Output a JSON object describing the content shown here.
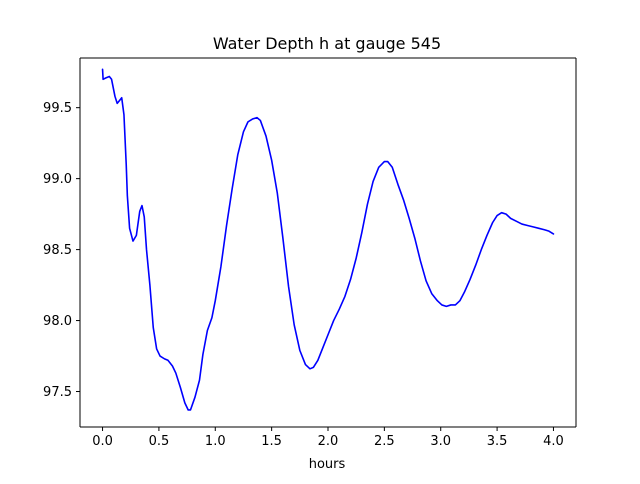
{
  "chart_data": {
    "type": "line",
    "title": "Water Depth h at gauge 545",
    "xlabel": "hours",
    "ylabel": "",
    "xlim": [
      -0.2,
      4.2
    ],
    "ylim": [
      97.25,
      99.85
    ],
    "x_ticks": [
      0.0,
      0.5,
      1.0,
      1.5,
      2.0,
      2.5,
      3.0,
      3.5,
      4.0
    ],
    "x_tick_labels": [
      "0.0",
      "0.5",
      "1.0",
      "1.5",
      "2.0",
      "2.5",
      "3.0",
      "3.5",
      "4.0"
    ],
    "y_ticks": [
      97.5,
      98.0,
      98.5,
      99.0,
      99.5
    ],
    "y_tick_labels": [
      "97.5",
      "98.0",
      "98.5",
      "99.0",
      "99.5"
    ],
    "grid": false,
    "legend": "none",
    "series": [
      {
        "color": "#0000ff",
        "points": [
          [
            0.0,
            99.77
          ],
          [
            0.005,
            99.7
          ],
          [
            0.03,
            99.71
          ],
          [
            0.06,
            99.72
          ],
          [
            0.08,
            99.7
          ],
          [
            0.11,
            99.58
          ],
          [
            0.13,
            99.53
          ],
          [
            0.15,
            99.55
          ],
          [
            0.17,
            99.57
          ],
          [
            0.19,
            99.45
          ],
          [
            0.21,
            99.1
          ],
          [
            0.22,
            98.88
          ],
          [
            0.24,
            98.65
          ],
          [
            0.27,
            98.56
          ],
          [
            0.3,
            98.6
          ],
          [
            0.33,
            98.77
          ],
          [
            0.35,
            98.81
          ],
          [
            0.37,
            98.73
          ],
          [
            0.39,
            98.5
          ],
          [
            0.42,
            98.25
          ],
          [
            0.45,
            97.95
          ],
          [
            0.48,
            97.8
          ],
          [
            0.51,
            97.75
          ],
          [
            0.55,
            97.73
          ],
          [
            0.58,
            97.72
          ],
          [
            0.62,
            97.68
          ],
          [
            0.65,
            97.63
          ],
          [
            0.69,
            97.53
          ],
          [
            0.73,
            97.42
          ],
          [
            0.76,
            97.37
          ],
          [
            0.78,
            97.37
          ],
          [
            0.82,
            97.46
          ],
          [
            0.86,
            97.58
          ],
          [
            0.89,
            97.76
          ],
          [
            0.93,
            97.93
          ],
          [
            0.97,
            98.02
          ],
          [
            1.0,
            98.14
          ],
          [
            1.05,
            98.38
          ],
          [
            1.1,
            98.67
          ],
          [
            1.15,
            98.93
          ],
          [
            1.2,
            99.17
          ],
          [
            1.25,
            99.33
          ],
          [
            1.29,
            99.4
          ],
          [
            1.33,
            99.42
          ],
          [
            1.37,
            99.43
          ],
          [
            1.4,
            99.41
          ],
          [
            1.45,
            99.3
          ],
          [
            1.5,
            99.13
          ],
          [
            1.55,
            98.9
          ],
          [
            1.6,
            98.58
          ],
          [
            1.65,
            98.24
          ],
          [
            1.7,
            97.97
          ],
          [
            1.75,
            97.79
          ],
          [
            1.8,
            97.69
          ],
          [
            1.84,
            97.66
          ],
          [
            1.87,
            97.67
          ],
          [
            1.91,
            97.72
          ],
          [
            1.95,
            97.8
          ],
          [
            2.0,
            97.9
          ],
          [
            2.05,
            98.0
          ],
          [
            2.1,
            98.08
          ],
          [
            2.15,
            98.17
          ],
          [
            2.2,
            98.29
          ],
          [
            2.25,
            98.44
          ],
          [
            2.3,
            98.62
          ],
          [
            2.35,
            98.82
          ],
          [
            2.4,
            98.98
          ],
          [
            2.45,
            99.08
          ],
          [
            2.5,
            99.12
          ],
          [
            2.53,
            99.12
          ],
          [
            2.57,
            99.08
          ],
          [
            2.62,
            98.96
          ],
          [
            2.67,
            98.85
          ],
          [
            2.72,
            98.72
          ],
          [
            2.77,
            98.58
          ],
          [
            2.82,
            98.42
          ],
          [
            2.87,
            98.28
          ],
          [
            2.92,
            98.19
          ],
          [
            2.97,
            98.14
          ],
          [
            3.01,
            98.11
          ],
          [
            3.05,
            98.1
          ],
          [
            3.09,
            98.11
          ],
          [
            3.13,
            98.11
          ],
          [
            3.17,
            98.14
          ],
          [
            3.21,
            98.2
          ],
          [
            3.26,
            98.29
          ],
          [
            3.31,
            98.39
          ],
          [
            3.36,
            98.5
          ],
          [
            3.41,
            98.6
          ],
          [
            3.46,
            98.69
          ],
          [
            3.5,
            98.74
          ],
          [
            3.54,
            98.76
          ],
          [
            3.58,
            98.75
          ],
          [
            3.62,
            98.72
          ],
          [
            3.67,
            98.7
          ],
          [
            3.72,
            98.68
          ],
          [
            3.77,
            98.67
          ],
          [
            3.82,
            98.66
          ],
          [
            3.87,
            98.65
          ],
          [
            3.92,
            98.64
          ],
          [
            3.96,
            98.63
          ],
          [
            4.0,
            98.61
          ]
        ]
      }
    ]
  }
}
